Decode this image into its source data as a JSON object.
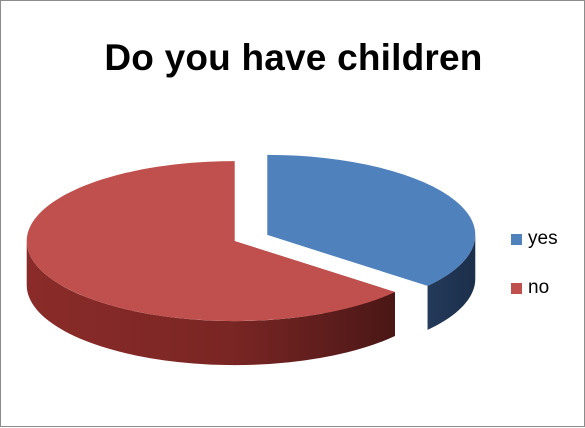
{
  "chart_data": {
    "type": "pie",
    "title": "Do you have children",
    "categories": [
      "yes",
      "no"
    ],
    "values": [
      36,
      64
    ],
    "colors": [
      "#4f81bd",
      "#c0504d"
    ],
    "legend_position": "right",
    "three_d": true,
    "exploded": true
  }
}
